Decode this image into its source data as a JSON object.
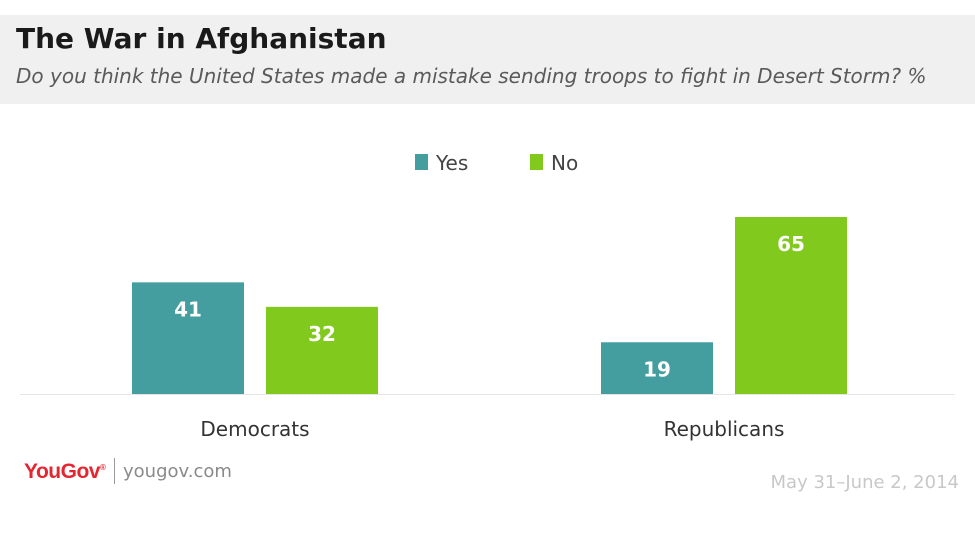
{
  "header": {
    "title": "The War in Afghanistan",
    "subtitle": "Do you think the United States made a mistake sending troops to fight in Desert Storm? %"
  },
  "footer": {
    "logo": "YouGov",
    "logo_mark": "®",
    "url": "yougov.com",
    "date": "May 31–June 2, 2014"
  },
  "colors": {
    "yes": "#449e9f",
    "no": "#82c91e"
  },
  "chart_data": {
    "type": "bar",
    "categories": [
      "Democrats",
      "Republicans"
    ],
    "series": [
      {
        "name": "Yes",
        "values": [
          41,
          19
        ]
      },
      {
        "name": "No",
        "values": [
          32,
          65
        ]
      }
    ],
    "ylim": [
      0,
      65
    ],
    "grid": false,
    "legend": "top-center",
    "data_labels": true
  }
}
